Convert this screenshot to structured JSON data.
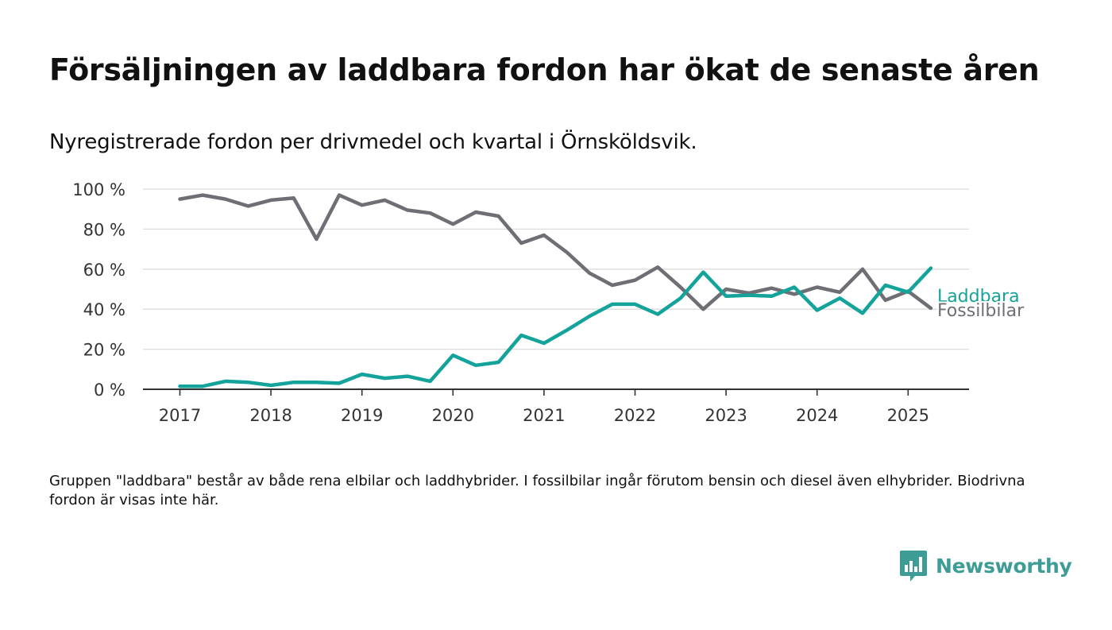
{
  "title": "Försäljningen av laddbara fordon har ökat de senaste åren",
  "subtitle": "Nyregistrerade fordon per drivmedel och kvartal i Örnsköldsvik.",
  "footnote": "Gruppen \"laddbara\" består av både rena elbilar och laddhybrider. I fossilbilar ingår förutom bensin och diesel även elhybrider. Biodrivna fordon är visas inte här.",
  "brand": "Newsworthy",
  "colors": {
    "laddbara": "#13a39a",
    "fossil": "#6f6e75",
    "grid": "#dcdcdc",
    "axis": "#333333",
    "brand": "#3d9c95"
  },
  "chart_data": {
    "type": "line",
    "x_unit": "quarter",
    "x_start": "2017 Q1",
    "x_ticks": [
      "2017",
      "2018",
      "2019",
      "2020",
      "2021",
      "2022",
      "2023",
      "2024",
      "2025"
    ],
    "y_ticks": [
      "0 %",
      "20 %",
      "40 %",
      "60 %",
      "80 %",
      "100 %"
    ],
    "ylim": [
      0,
      100
    ],
    "grid": true,
    "series": [
      {
        "name": "Laddbara",
        "key": "laddbara",
        "values": [
          1.5,
          1.5,
          4,
          3.5,
          2,
          3.5,
          3.5,
          3,
          7.5,
          5.5,
          6.5,
          4,
          17,
          12,
          13.5,
          27,
          23,
          29.5,
          36.5,
          42.5,
          42.5,
          37.5,
          45.5,
          58.5,
          46.5,
          47,
          46.5,
          51,
          39.5,
          45.5,
          38,
          52,
          48.5,
          60.5
        ]
      },
      {
        "name": "Fossilbilar",
        "key": "fossil",
        "values": [
          95,
          97,
          95,
          91.5,
          94.5,
          95.5,
          75,
          97,
          92,
          94.5,
          89.5,
          88,
          82.5,
          88.5,
          86.5,
          73,
          77,
          68.5,
          58,
          52,
          54.5,
          61,
          51,
          40,
          50,
          48,
          50.5,
          47.5,
          51,
          48.5,
          60,
          44.5,
          49,
          40.5
        ]
      }
    ]
  }
}
